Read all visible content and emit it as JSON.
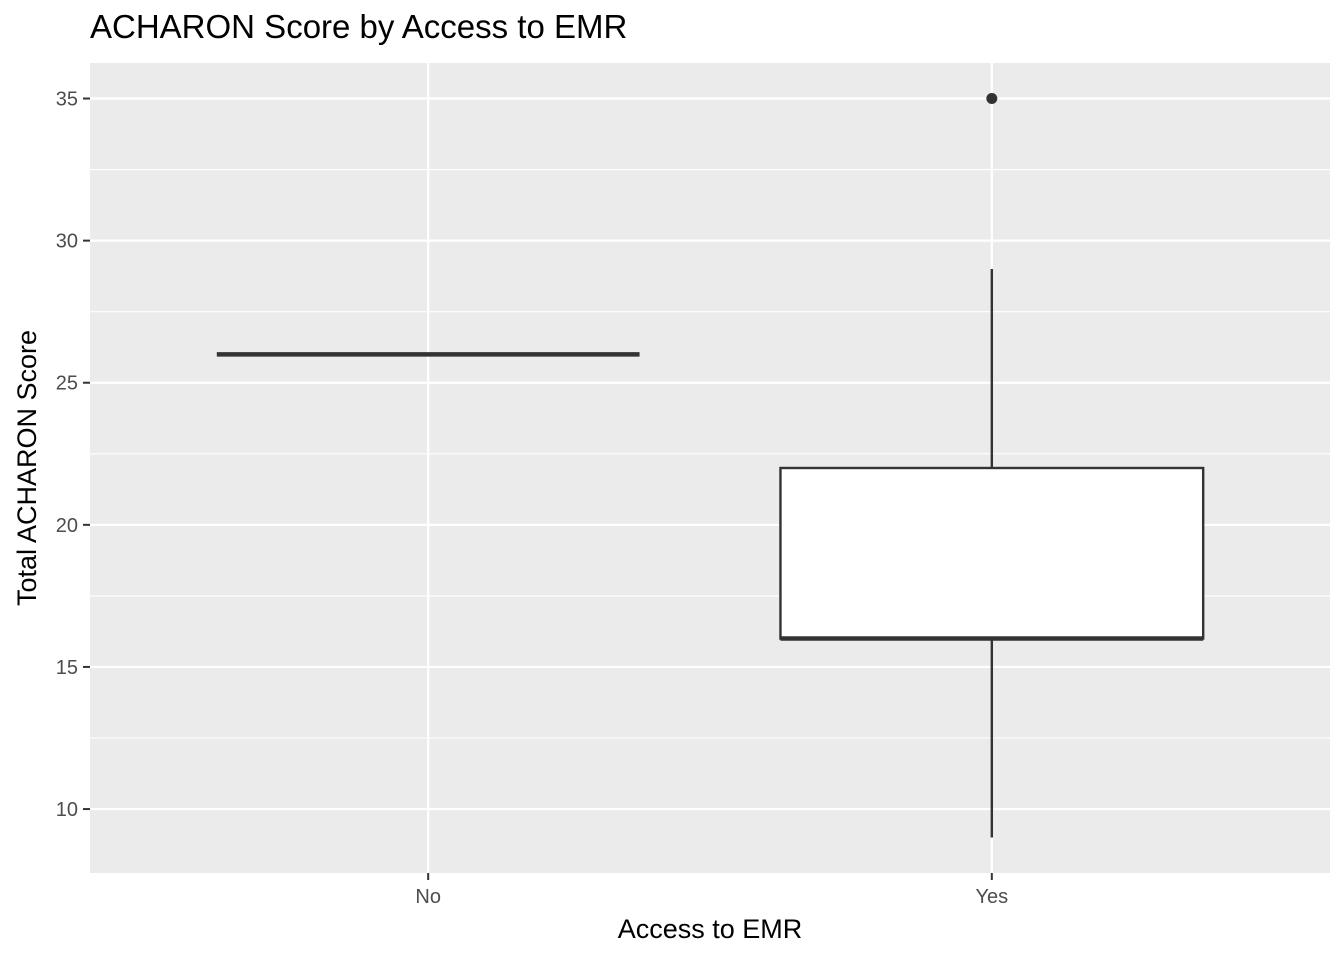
{
  "chart_data": {
    "type": "boxplot",
    "title": "ACHARON Score by Access to EMR",
    "xlabel": "Access to EMR",
    "ylabel": "Total ACHARON Score",
    "categories": [
      "No",
      "Yes"
    ],
    "boxes": [
      {
        "category": "No",
        "min": 26,
        "q1": 26,
        "median": 26,
        "q3": 26,
        "max": 26,
        "outliers": []
      },
      {
        "category": "Yes",
        "min": 9,
        "q1": 16,
        "median": 16,
        "q3": 22,
        "max": 29,
        "outliers": [
          35
        ]
      }
    ],
    "ylim": [
      7.75,
      36.25
    ],
    "yticks": [
      10,
      15,
      20,
      25,
      30,
      35
    ],
    "grid": true,
    "legend": "none",
    "colors": {
      "panel": "#ebebeb",
      "grid": "#ffffff",
      "box_fill": "#ffffff",
      "box_line": "#333333"
    }
  }
}
